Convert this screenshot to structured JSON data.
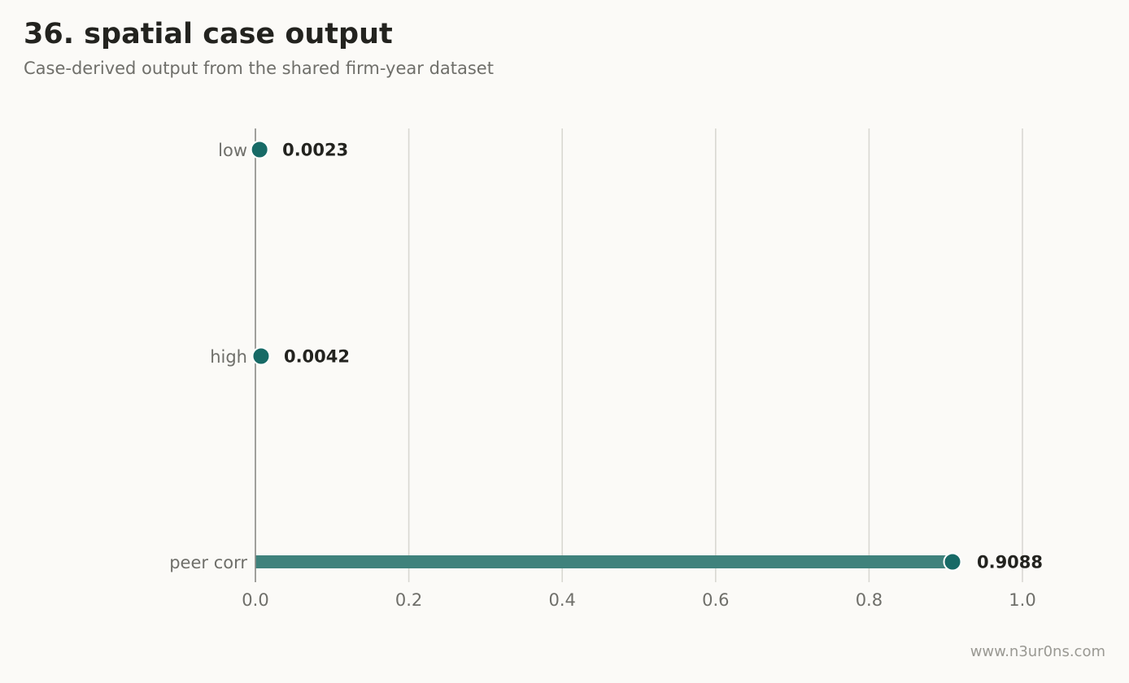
{
  "header": {
    "title": "36. spatial case output",
    "subtitle": "Case-derived output from the shared firm-year dataset"
  },
  "footer": {
    "watermark": "www.n3ur0ns.com"
  },
  "colors": {
    "background": "#fbfaf7",
    "accent": "#176a66",
    "bar": "#3f827c",
    "grid": "#d9d8d2",
    "axis": "#8a8a85",
    "tick_text": "#6f6f6a",
    "value_text": "#23231f"
  },
  "chart_data": {
    "type": "bar",
    "orientation": "horizontal",
    "style": "lollipop",
    "title": "36. spatial case output",
    "subtitle": "Case-derived output from the shared firm-year dataset",
    "categories": [
      "low",
      "high",
      "peer corr"
    ],
    "values": [
      0.0023,
      0.0042,
      0.9088
    ],
    "value_labels": [
      "0.0023",
      "0.0042",
      "0.9088"
    ],
    "xlabel": "",
    "ylabel": "",
    "xlim": [
      0.0,
      1.0
    ],
    "x_ticks": [
      0.0,
      0.2,
      0.4,
      0.6,
      0.8,
      1.0
    ],
    "x_tick_labels": [
      "0.0",
      "0.2",
      "0.4",
      "0.6",
      "0.8",
      "1.0"
    ],
    "grid": "vertical",
    "legend": "none"
  }
}
